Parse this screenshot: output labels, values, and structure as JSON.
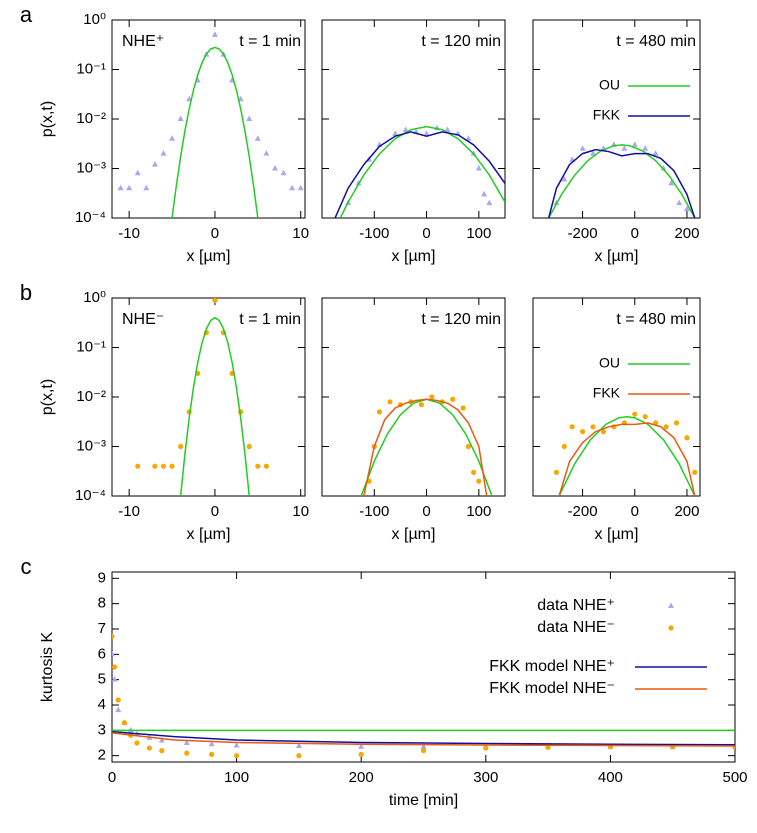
{
  "chart_data": [
    {
      "type": "scatter",
      "panel_label": "a",
      "title": "t = 1 min",
      "annotation": "NHE⁺",
      "x_label": "x [µm]",
      "y_label": "p(x,t)",
      "ylog": true,
      "xlim": [
        -12,
        10.5
      ],
      "ylim": [
        0.0001,
        1
      ],
      "xticks": [
        -10,
        0,
        10
      ],
      "yticks": [
        {
          "value": 0.0001,
          "label": "10⁻⁴"
        },
        {
          "value": 0.001,
          "label": "10⁻³"
        },
        {
          "value": 0.01,
          "label": "10⁻²"
        },
        {
          "value": 0.1,
          "label": "10⁻¹"
        },
        {
          "value": 1,
          "label": "10⁰"
        }
      ],
      "series": [
        {
          "marker": "triangle",
          "color": "#a8a8f0",
          "x": [
            -11,
            -10,
            -9,
            -8,
            -7,
            -6,
            -5,
            -4,
            -3,
            -2,
            -1,
            0,
            1,
            2,
            3,
            4,
            5,
            6,
            7,
            8,
            9,
            10
          ],
          "values": [
            0.0004,
            0.0004,
            0.0008,
            0.0004,
            0.0012,
            0.002,
            0.004,
            0.01,
            0.025,
            0.06,
            0.2,
            0.5,
            0.2,
            0.06,
            0.025,
            0.01,
            0.004,
            0.002,
            0.001,
            0.0008,
            0.0004,
            0.0004
          ]
        },
        {
          "marker": "line",
          "color": "#22cc22",
          "x": [
            -5,
            -4.5,
            -4,
            -3.5,
            -3,
            -2.5,
            -2,
            -1.5,
            -1,
            -0.5,
            0,
            0.5,
            1,
            1.5,
            2,
            2.5,
            3,
            3.5,
            4,
            4.5,
            5
          ],
          "values": [
            0.0001,
            0.00045,
            0.00174,
            0.00573,
            0.0161,
            0.0385,
            0.0787,
            0.137,
            0.204,
            0.259,
            0.28,
            0.259,
            0.204,
            0.137,
            0.0787,
            0.0385,
            0.0161,
            0.00573,
            0.00174,
            0.00045,
            0.0001
          ]
        }
      ]
    },
    {
      "type": "scatter",
      "title": "t = 120 min",
      "ylog": true,
      "ytick_labels": false,
      "x_label": "x [µm]",
      "xlim": [
        -200,
        150
      ],
      "ylim": [
        0.0001,
        1
      ],
      "xticks": [
        -100,
        0,
        100
      ],
      "yticks": [
        0.0001,
        0.001,
        0.01,
        0.1,
        1
      ],
      "series": [
        {
          "marker": "triangle",
          "color": "#a8a8f0",
          "x": [
            -150,
            -130,
            -110,
            -90,
            -60,
            -40,
            -20,
            0,
            20,
            40,
            60,
            80,
            90,
            100,
            110,
            120
          ],
          "values": [
            0.0002,
            0.0005,
            0.0015,
            0.003,
            0.005,
            0.006,
            0.0055,
            0.005,
            0.0065,
            0.006,
            0.005,
            0.004,
            0.002,
            0.001,
            0.0003,
            0.0002
          ]
        },
        {
          "marker": "line",
          "color": "#22cc22",
          "x": [
            -165,
            -150,
            -120,
            -90,
            -60,
            -30,
            0,
            30,
            60,
            90,
            120,
            150
          ],
          "values": [
            0.0001,
            0.000209,
            0.00074,
            0.00198,
            0.00399,
            0.00608,
            0.007,
            0.00608,
            0.00399,
            0.00198,
            0.00074,
            0.000209
          ]
        },
        {
          "marker": "line",
          "color": "#1010a0",
          "x": [
            -175,
            -150,
            -120,
            -90,
            -60,
            -30,
            0,
            30,
            60,
            90,
            120,
            150
          ],
          "values": [
            0.0001,
            0.0004,
            0.0012,
            0.0028,
            0.0045,
            0.0055,
            0.0045,
            0.0055,
            0.0048,
            0.003,
            0.0014,
            0.0005
          ]
        }
      ]
    },
    {
      "type": "scatter",
      "title": "t = 480 min",
      "ylog": true,
      "ytick_labels": false,
      "x_label": "x [µm]",
      "legend": "top-right",
      "xlim": [
        -390,
        250
      ],
      "ylim": [
        0.0001,
        1
      ],
      "xticks": [
        -200,
        0,
        200
      ],
      "yticks": [
        0.0001,
        0.001,
        0.01,
        0.1,
        1
      ],
      "series": [
        {
          "marker": "triangle",
          "color": "#a8a8f0",
          "x": [
            -300,
            -270,
            -240,
            -200,
            -160,
            -120,
            -80,
            -40,
            0,
            40,
            80,
            110,
            140,
            170,
            200
          ],
          "values": [
            0.0002,
            0.0006,
            0.0015,
            0.0025,
            0.002,
            0.0025,
            0.003,
            0.0025,
            0.003,
            0.0025,
            0.002,
            0.001,
            0.0005,
            0.0002,
            0.00015
          ]
        },
        {
          "name": "OU",
          "marker": "line",
          "color": "#22cc22",
          "x": [
            -330,
            -280,
            -230,
            -180,
            -130,
            -80,
            -50,
            -20,
            30,
            80,
            130,
            180,
            230
          ],
          "values": [
            0.0001,
            0.000302,
            0.000736,
            0.00144,
            0.00227,
            0.00289,
            0.003,
            0.00289,
            0.00227,
            0.00144,
            0.000736,
            0.000302,
            0.0001
          ]
        },
        {
          "name": "FKK",
          "marker": "line",
          "color": "#1010a0",
          "x": [
            -330,
            -300,
            -250,
            -200,
            -150,
            -100,
            -50,
            0,
            50,
            100,
            150,
            200,
            230
          ],
          "values": [
            0.0001,
            0.0004,
            0.0012,
            0.002,
            0.0024,
            0.0022,
            0.0018,
            0.002,
            0.002,
            0.0016,
            0.0009,
            0.0003,
            0.0001
          ]
        }
      ]
    },
    {
      "type": "scatter",
      "panel_label": "b",
      "title": "t = 1 min",
      "annotation": "NHE⁻",
      "x_label": "x [µm]",
      "y_label": "p(x,t)",
      "ylog": true,
      "xlim": [
        -12,
        10.5
      ],
      "ylim": [
        0.0001,
        1
      ],
      "xticks": [
        -10,
        0,
        10
      ],
      "yticks": [
        {
          "value": 0.0001,
          "label": "10⁻⁴"
        },
        {
          "value": 0.001,
          "label": "10⁻³"
        },
        {
          "value": 0.01,
          "label": "10⁻²"
        },
        {
          "value": 0.1,
          "label": "10⁻¹"
        },
        {
          "value": 1,
          "label": "10⁰"
        }
      ],
      "series": [
        {
          "marker": "circle",
          "color": "#f5a800",
          "x": [
            -9,
            -7,
            -6,
            -5,
            -4,
            -3,
            -2,
            -1,
            0,
            1,
            2,
            3,
            4,
            5,
            6
          ],
          "values": [
            0.0004,
            0.0004,
            0.0004,
            0.0004,
            0.001,
            0.005,
            0.03,
            0.2,
            0.9,
            0.2,
            0.03,
            0.005,
            0.001,
            0.0004,
            0.0004
          ]
        },
        {
          "marker": "line",
          "color": "#22cc22",
          "x": [
            -4,
            -3.5,
            -3,
            -2.5,
            -2,
            -1.5,
            -1,
            -0.5,
            0,
            0.5,
            1,
            1.5,
            2,
            2.5,
            3,
            3.5,
            4
          ],
          "values": [
            0.0001,
            0.0007,
            0.00378,
            0.0157,
            0.0503,
            0.125,
            0.238,
            0.351,
            0.4,
            0.351,
            0.238,
            0.125,
            0.0503,
            0.0157,
            0.00378,
            0.0007,
            0.0001
          ]
        }
      ]
    },
    {
      "type": "scatter",
      "title": "t = 120 min",
      "ylog": true,
      "ytick_labels": false,
      "x_label": "x [µm]",
      "xlim": [
        -200,
        150
      ],
      "ylim": [
        0.0001,
        1
      ],
      "xticks": [
        -100,
        0,
        100
      ],
      "yticks": [
        0.0001,
        0.001,
        0.01,
        0.1,
        1
      ],
      "series": [
        {
          "marker": "circle",
          "color": "#f5a800",
          "x": [
            -110,
            -100,
            -90,
            -70,
            -50,
            -30,
            -10,
            10,
            30,
            50,
            70,
            80,
            90,
            100
          ],
          "values": [
            0.0002,
            0.001,
            0.005,
            0.008,
            0.007,
            0.008,
            0.007,
            0.01,
            0.008,
            0.009,
            0.006,
            0.001,
            0.0003,
            0.0002
          ]
        },
        {
          "marker": "line",
          "color": "#22cc22",
          "x": [
            -125,
            -100,
            -75,
            -50,
            -25,
            0,
            25,
            50,
            75,
            100,
            125
          ],
          "values": [
            0.0001,
            0.000505,
            0.00178,
            0.00438,
            0.0075,
            0.009,
            0.0075,
            0.00438,
            0.00178,
            0.000505,
            0.0001
          ]
        },
        {
          "marker": "line",
          "color": "#e65a14",
          "x": [
            -120,
            -100,
            -80,
            -60,
            -40,
            -20,
            0,
            20,
            40,
            60,
            80,
            100,
            115
          ],
          "values": [
            0.0001,
            0.001,
            0.0035,
            0.006,
            0.0075,
            0.0085,
            0.009,
            0.0085,
            0.0075,
            0.0055,
            0.003,
            0.001,
            0.0001
          ]
        }
      ]
    },
    {
      "type": "scatter",
      "title": "t = 480 min",
      "ylog": true,
      "ytick_labels": false,
      "x_label": "x [µm]",
      "legend": "top-right",
      "xlim": [
        -390,
        250
      ],
      "ylim": [
        0.0001,
        1
      ],
      "xticks": [
        -200,
        0,
        200
      ],
      "yticks": [
        0.0001,
        0.001,
        0.01,
        0.1,
        1
      ],
      "series": [
        {
          "marker": "circle",
          "color": "#f5a800",
          "x": [
            -300,
            -270,
            -240,
            -200,
            -160,
            -120,
            -80,
            -40,
            0,
            40,
            80,
            120,
            160,
            200,
            230
          ],
          "values": [
            0.0003,
            0.001,
            0.0025,
            0.002,
            0.0025,
            0.002,
            0.0025,
            0.003,
            0.0045,
            0.004,
            0.003,
            0.0025,
            0.003,
            0.0015,
            0.0003
          ]
        },
        {
          "name": "OU",
          "marker": "line",
          "color": "#22cc22",
          "x": [
            -290,
            -230,
            -170,
            -110,
            -60,
            -30,
            0,
            50,
            110,
            170,
            230
          ],
          "values": [
            0.0001,
            0.00045,
            0.00137,
            0.00282,
            0.00381,
            0.004,
            0.00381,
            0.00282,
            0.00137,
            0.00045,
            0.0001
          ]
        },
        {
          "name": "FKK",
          "marker": "line",
          "color": "#e65a14",
          "x": [
            -290,
            -250,
            -200,
            -150,
            -100,
            -50,
            0,
            50,
            100,
            150,
            200,
            230
          ],
          "values": [
            0.0001,
            0.0005,
            0.0012,
            0.002,
            0.0025,
            0.0028,
            0.0028,
            0.003,
            0.0025,
            0.0015,
            0.0005,
            0.0001
          ]
        }
      ]
    },
    {
      "type": "scatter",
      "panel_label": "c",
      "x_label": "time [min]",
      "y_label": "kurtosis K",
      "legend": "top-right",
      "xlim": [
        0,
        500
      ],
      "ylim": [
        1.75,
        9.25
      ],
      "xticks": [
        0,
        100,
        200,
        300,
        400,
        500
      ],
      "yticks": [
        2,
        3,
        4,
        5,
        6,
        7,
        8,
        9
      ],
      "series": [
        {
          "name": "data NHE⁺",
          "marker": "triangle",
          "color": "#a8a8f0",
          "x": [
            0,
            2,
            5,
            10,
            15,
            20,
            30,
            40,
            60,
            80,
            100,
            150,
            200,
            250,
            300,
            350,
            400,
            450,
            500
          ],
          "values": [
            6,
            5,
            3.8,
            3.3,
            3,
            2.85,
            2.7,
            2.6,
            2.5,
            2.45,
            2.4,
            2.38,
            2.35,
            2.35,
            2.35,
            2.35,
            2.35,
            2.33,
            2.33
          ]
        },
        {
          "name": "data NHE⁻",
          "marker": "circle",
          "color": "#f5a800",
          "x": [
            0,
            2,
            5,
            10,
            15,
            20,
            30,
            40,
            60,
            80,
            100,
            150,
            200,
            250,
            300,
            350,
            400,
            450,
            500
          ],
          "values": [
            6.7,
            5.5,
            4.2,
            3.3,
            2.8,
            2.5,
            2.3,
            2.2,
            2.1,
            2.05,
            2,
            2,
            2.05,
            2.2,
            2.3,
            2.33,
            2.35,
            2.35,
            2.35
          ]
        },
        {
          "name": "FKK model NHE⁺",
          "marker": "line",
          "color": "#1010a0",
          "x": [
            0,
            50,
            100,
            200,
            300,
            400,
            500
          ],
          "values": [
            2.95,
            2.75,
            2.62,
            2.52,
            2.48,
            2.45,
            2.43
          ]
        },
        {
          "name": "FKK model NHE⁻",
          "marker": "line",
          "color": "#e65a14",
          "x": [
            0,
            50,
            100,
            200,
            300,
            400,
            500
          ],
          "values": [
            2.9,
            2.62,
            2.52,
            2.45,
            2.42,
            2.4,
            2.38
          ]
        },
        {
          "marker": "line",
          "color": "#22cc22",
          "x": [
            0,
            500
          ],
          "values": [
            3,
            3
          ]
        }
      ]
    }
  ]
}
